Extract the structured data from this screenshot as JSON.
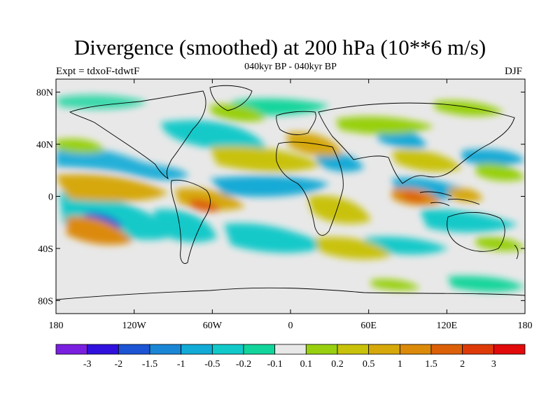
{
  "title": "Divergence (smoothed) at 200 hPa (10**6 m/s)",
  "experiment_label": "Expt = tdxoF-tdwtF",
  "period_label": "040kyr BP - 040kyr BP",
  "season_label": "DJF",
  "map": {
    "lon_range": [
      -180,
      180
    ],
    "lat_range": [
      -90,
      90
    ],
    "lon_ticks": [
      {
        "value": -180,
        "label": "180"
      },
      {
        "value": -120,
        "label": "120W"
      },
      {
        "value": -60,
        "label": "60W"
      },
      {
        "value": 0,
        "label": "0"
      },
      {
        "value": 60,
        "label": "60E"
      },
      {
        "value": 120,
        "label": "120E"
      },
      {
        "value": 180,
        "label": "180"
      }
    ],
    "lat_ticks": [
      {
        "value": 80,
        "label": "80N"
      },
      {
        "value": 40,
        "label": "40N"
      },
      {
        "value": 0,
        "label": "0"
      },
      {
        "value": -40,
        "label": "40S"
      },
      {
        "value": -80,
        "label": "80S"
      }
    ],
    "background_color": "#e8e8e8",
    "coastline_color": "#000000"
  },
  "colorbar": {
    "labels": [
      "-3",
      "-2",
      "-1.5",
      "-1",
      "-0.5",
      "-0.2",
      "-0.1",
      "0.1",
      "0.2",
      "0.5",
      "1",
      "1.5",
      "2",
      "3"
    ],
    "colors": [
      "#7a1fe0",
      "#3010dd",
      "#1c54d4",
      "#1a86d6",
      "#12aad6",
      "#12c9c9",
      "#12d59c",
      "#e8e8e8",
      "#98d010",
      "#c9c20a",
      "#d6a80a",
      "#db8a0a",
      "#dc6008",
      "#de3a08",
      "#e20a0a"
    ]
  }
}
